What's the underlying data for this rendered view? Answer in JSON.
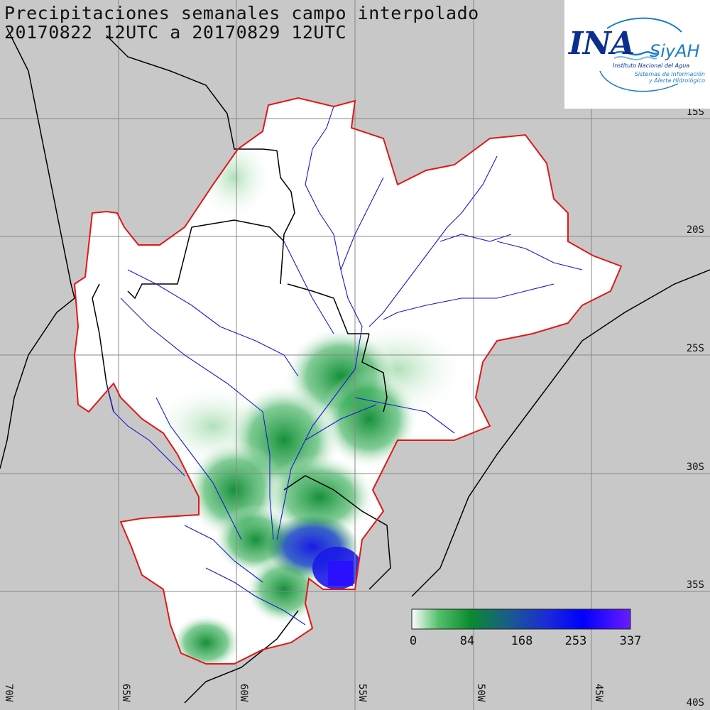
{
  "title": {
    "line1": "Precipitaciones semanales campo interpolado",
    "line2": "20170822 12UTC a 20170829 12UTC"
  },
  "graticule": {
    "latitudes": [
      "15S",
      "20S",
      "25S",
      "30S",
      "35S",
      "40S"
    ],
    "longitudes": [
      "70W",
      "65W",
      "60W",
      "55W",
      "50W",
      "45W"
    ]
  },
  "legend": {
    "ticks": [
      "0",
      "84",
      "168",
      "253",
      "337"
    ],
    "colors": [
      "#ffffff",
      "#16a03a",
      "#0a8a30",
      "#1f2fd8",
      "#0000ff",
      "#6a1cff"
    ]
  },
  "logo": {
    "main": "INA",
    "siyah": "SiyAH",
    "institute": "Instituto Nacional del Agua",
    "subtitle_1": "Sistemas de Información",
    "subtitle_2": "y Alerta Hidrológico"
  },
  "colors": {
    "background": "#c8c8c8",
    "basin_border": "#e01818",
    "rivers": "#1a1ad0",
    "borders": "#000000",
    "grid": "#888888"
  }
}
